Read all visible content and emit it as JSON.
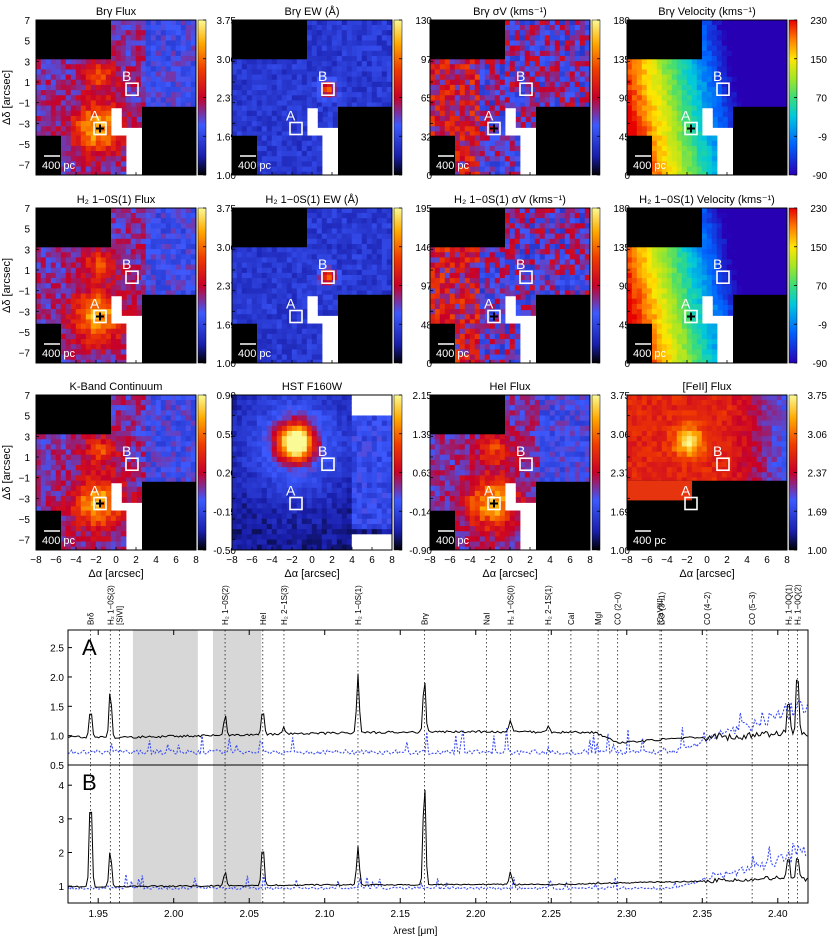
{
  "figure": {
    "map_panels": [
      {
        "title": "Brγ Flux",
        "cbar": [
          "3.75",
          "3.06",
          "2.37",
          "1.69",
          "1.00"
        ],
        "scheme": "heat",
        "footprint": "ifu",
        "scalebar": "400 pc",
        "marker_a": true
      },
      {
        "title": "Brγ EW (Å)",
        "cbar": [
          "130",
          "97",
          "65",
          "32",
          "0"
        ],
        "scheme": "ew",
        "footprint": "ifu",
        "scalebar": "400 pc",
        "marker_a": false
      },
      {
        "title": "Brγ σV (kms⁻¹)",
        "cbar": [
          "180",
          "135",
          "90",
          "45",
          "0"
        ],
        "scheme": "disp",
        "footprint": "ifu",
        "scalebar": "400 pc",
        "marker_a": true
      },
      {
        "title": "Brγ Velocity (kms⁻¹)",
        "cbar": [
          "230",
          "150",
          "70",
          "-9",
          "-90"
        ],
        "scheme": "vel",
        "footprint": "ifu",
        "scalebar": "400 pc",
        "marker_a": true
      },
      {
        "title": "H₂ 1−0S(1) Flux",
        "cbar": [
          "3.75",
          "3.06",
          "2.37",
          "1.69",
          "1.00"
        ],
        "scheme": "heat",
        "footprint": "ifu",
        "scalebar": "400 pc",
        "marker_a": true
      },
      {
        "title": "H₂ 1−0S(1) EW (Å)",
        "cbar": [
          "195",
          "146",
          "97",
          "48",
          "0"
        ],
        "scheme": "ew",
        "footprint": "ifu",
        "scalebar": "400 pc",
        "marker_a": false
      },
      {
        "title": "H₂ 1−0S(1) σV (kms⁻¹)",
        "cbar": [
          "180",
          "135",
          "90",
          "45",
          "0"
        ],
        "scheme": "disp",
        "footprint": "ifu",
        "scalebar": "400 pc",
        "marker_a": true
      },
      {
        "title": "H₂ 1−0S(1) Velocity (kms⁻¹)",
        "cbar": [
          "230",
          "150",
          "70",
          "-9",
          "-90"
        ],
        "scheme": "vel",
        "footprint": "ifu",
        "scalebar": "400 pc",
        "marker_a": true
      },
      {
        "title": "K-Band Continuum",
        "cbar": [
          "0.90",
          "0.55",
          "0.20",
          "-0.15",
          "-0.50"
        ],
        "scheme": "heat",
        "footprint": "ifu",
        "scalebar": "400 pc",
        "marker_a": true
      },
      {
        "title": "HST F160W",
        "cbar": [
          "2.15",
          "1.39",
          "0.63",
          "-0.14",
          "-0.90"
        ],
        "scheme": "hst",
        "footprint": "full",
        "scalebar": "",
        "marker_a": false
      },
      {
        "title": "HeI Flux",
        "cbar": [
          "3.75",
          "3.06",
          "2.37",
          "1.69",
          "1.00"
        ],
        "scheme": "heat",
        "footprint": "ifu",
        "scalebar": "400 pc",
        "marker_a": true
      },
      {
        "title": "[FeII] Flux",
        "cbar": [
          "3.75",
          "3.06",
          "2.37",
          "1.69",
          "1.00"
        ],
        "scheme": "fe",
        "footprint": "fe",
        "scalebar": "400 pc",
        "marker_a": false
      }
    ],
    "map_axes": {
      "x_ticks": [
        "−8",
        "−6",
        "−4",
        "−2",
        "0",
        "2",
        "4",
        "6",
        "8"
      ],
      "y_ticks": [
        "7",
        "5",
        "3",
        "1",
        "−1",
        "−3",
        "−5",
        "−7"
      ],
      "xlabel": "Δα [arcsec]",
      "ylabel": "Δδ [arcsec]",
      "region_labels": [
        "A",
        "B"
      ]
    },
    "spectrum": {
      "xlabel": "λrest [μm]",
      "x_ticks": [
        "1.95",
        "2.00",
        "2.05",
        "2.10",
        "2.15",
        "2.20",
        "2.25",
        "2.30",
        "2.35",
        "2.40"
      ],
      "top_panel": {
        "label": "A",
        "y_ticks": [
          "2.5",
          "2.0",
          "1.5",
          "1.0",
          "0.5"
        ]
      },
      "bottom_panel": {
        "label": "B",
        "y_ticks": [
          "4",
          "3",
          "2",
          "1"
        ]
      },
      "line_ids": [
        "Brδ",
        "H₂ 1−0S(3)",
        "[SiVI]",
        "H₂ 1−0S(2)",
        "HeI",
        "H₂ 2−1S(3)",
        "H₂ 1−0S(1)",
        "Brγ",
        "NaI",
        "H₂ 1−0S(0)",
        "H₂ 2−1S(1)",
        "CaI",
        "MgI",
        "CO (2−0)",
        "[CaVIII]",
        "CO (3−1)",
        "CO (4−2)",
        "CO (5−3)",
        "H₂ 1−0Q(1)",
        "H₂ 1−0Q(2)"
      ]
    }
  },
  "chart_data": {
    "type": "line",
    "xlabel": "λrest [μm]",
    "xlim": [
      1.93,
      2.42
    ],
    "excluded_bands_um": [
      [
        1.973,
        2.016
      ],
      [
        2.026,
        2.058
      ]
    ],
    "lines_um": [
      {
        "name": "Brδ",
        "x": 1.945
      },
      {
        "name": "H₂ 1−0S(3)",
        "x": 1.958
      },
      {
        "name": "[SiVI]",
        "x": 1.964
      },
      {
        "name": "H₂ 1−0S(2)",
        "x": 2.034
      },
      {
        "name": "HeI",
        "x": 2.059
      },
      {
        "name": "H₂ 2−1S(3)",
        "x": 2.073
      },
      {
        "name": "H₂ 1−0S(1)",
        "x": 2.122
      },
      {
        "name": "Brγ",
        "x": 2.166
      },
      {
        "name": "NaI",
        "x": 2.207
      },
      {
        "name": "H₂ 1−0S(0)",
        "x": 2.223
      },
      {
        "name": "H₂ 2−1S(1)",
        "x": 2.248
      },
      {
        "name": "CaI",
        "x": 2.263
      },
      {
        "name": "MgI",
        "x": 2.281
      },
      {
        "name": "CO (2−0)",
        "x": 2.294
      },
      {
        "name": "[CaVIII]",
        "x": 2.322
      },
      {
        "name": "CO (3−1)",
        "x": 2.323
      },
      {
        "name": "CO (4−2)",
        "x": 2.353
      },
      {
        "name": "CO (5−3)",
        "x": 2.383
      },
      {
        "name": "H₂ 1−0Q(1)",
        "x": 2.407
      },
      {
        "name": "H₂ 1−0Q(2)",
        "x": 2.413
      }
    ],
    "panels": [
      {
        "label": "A",
        "ylim": [
          0.5,
          2.8
        ],
        "continuum": [
          [
            1.93,
            0.98
          ],
          [
            1.96,
            0.97
          ],
          [
            2.0,
            0.99
          ],
          [
            2.05,
            1.02
          ],
          [
            2.1,
            1.04
          ],
          [
            2.15,
            1.06
          ],
          [
            2.2,
            1.07
          ],
          [
            2.25,
            1.06
          ],
          [
            2.28,
            1.05
          ],
          [
            2.295,
            0.87
          ],
          [
            2.32,
            0.93
          ],
          [
            2.35,
            0.98
          ],
          [
            2.37,
            0.97
          ],
          [
            2.4,
            1.05
          ],
          [
            2.42,
            1.0
          ]
        ],
        "peaks": [
          [
            1.945,
            1.5
          ],
          [
            1.958,
            1.8
          ],
          [
            2.034,
            1.36
          ],
          [
            2.059,
            1.48
          ],
          [
            2.073,
            1.14
          ],
          [
            2.122,
            2.05
          ],
          [
            2.166,
            2.0
          ],
          [
            2.223,
            1.28
          ],
          [
            2.248,
            1.18
          ],
          [
            2.407,
            1.7
          ],
          [
            2.413,
            2.15
          ]
        ],
        "noise_level": 0.68
      },
      {
        "label": "B",
        "ylim": [
          0.5,
          4.6
        ],
        "continuum": [
          [
            1.93,
            0.98
          ],
          [
            2.0,
            1.0
          ],
          [
            2.05,
            1.02
          ],
          [
            2.1,
            1.04
          ],
          [
            2.15,
            1.04
          ],
          [
            2.2,
            1.05
          ],
          [
            2.25,
            1.05
          ],
          [
            2.3,
            1.1
          ],
          [
            2.35,
            1.15
          ],
          [
            2.4,
            1.25
          ],
          [
            2.42,
            1.2
          ]
        ],
        "peaks": [
          [
            1.945,
            3.8
          ],
          [
            1.958,
            2.1
          ],
          [
            2.034,
            1.45
          ],
          [
            2.059,
            2.3
          ],
          [
            2.122,
            2.2
          ],
          [
            2.166,
            4.2
          ],
          [
            2.223,
            1.45
          ],
          [
            2.407,
            2.0
          ],
          [
            2.413,
            2.0
          ]
        ],
        "noise_level": 0.9
      }
    ]
  }
}
